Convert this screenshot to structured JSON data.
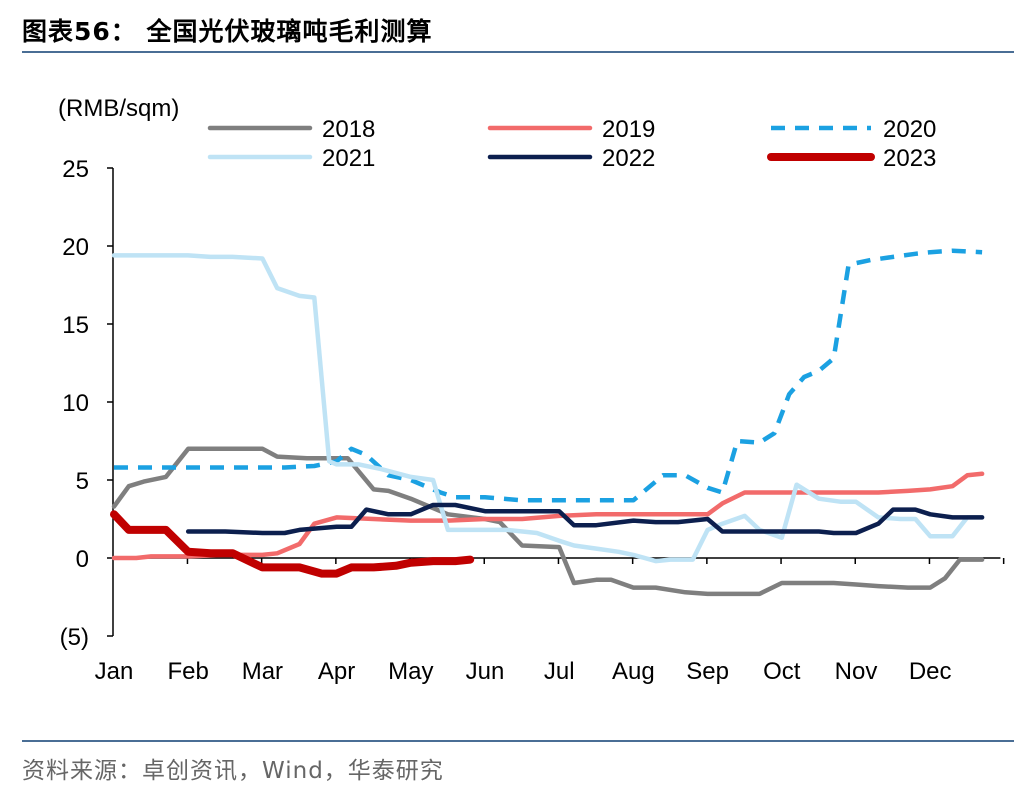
{
  "title": "图表56：  全国光伏玻璃吨毛利测算",
  "source": "资料来源：卓创资讯，Wind，华泰研究",
  "chart_data": {
    "type": "line",
    "unit_label": "(RMB/sqm)",
    "categories": [
      "Jan",
      "Feb",
      "Mar",
      "Apr",
      "May",
      "Jun",
      "Jul",
      "Aug",
      "Sep",
      "Oct",
      "Nov",
      "Dec"
    ],
    "ylim": [
      -5,
      25
    ],
    "yticks": [
      25,
      20,
      15,
      10,
      5,
      0,
      -5
    ],
    "ytick_labels": [
      "25",
      "20",
      "15",
      "10",
      "5",
      "0",
      "(5)"
    ],
    "grid": false,
    "legend_position": "top",
    "series": [
      {
        "name": "2018",
        "color": "#7f7f7f",
        "dash": "solid",
        "width": 4.5,
        "points": [
          [
            0,
            3.3
          ],
          [
            0.2,
            4.6
          ],
          [
            0.4,
            4.9
          ],
          [
            0.7,
            5.2
          ],
          [
            1.0,
            7.0
          ],
          [
            1.5,
            7.0
          ],
          [
            2.0,
            7.0
          ],
          [
            2.2,
            6.5
          ],
          [
            2.6,
            6.4
          ],
          [
            3.0,
            6.4
          ],
          [
            3.15,
            6.4
          ],
          [
            3.5,
            4.4
          ],
          [
            3.7,
            4.3
          ],
          [
            4.0,
            3.8
          ],
          [
            4.5,
            2.8
          ],
          [
            5.0,
            2.5
          ],
          [
            5.2,
            2.3
          ],
          [
            5.5,
            0.8
          ],
          [
            6.0,
            0.7
          ],
          [
            6.2,
            -1.6
          ],
          [
            6.5,
            -1.4
          ],
          [
            6.7,
            -1.4
          ],
          [
            7.0,
            -1.9
          ],
          [
            7.3,
            -1.9
          ],
          [
            7.7,
            -2.2
          ],
          [
            8.0,
            -2.3
          ],
          [
            8.5,
            -2.3
          ],
          [
            8.7,
            -2.3
          ],
          [
            9.0,
            -1.6
          ],
          [
            9.5,
            -1.6
          ],
          [
            9.7,
            -1.6
          ],
          [
            10.0,
            -1.7
          ],
          [
            10.3,
            -1.8
          ],
          [
            10.7,
            -1.9
          ],
          [
            11.0,
            -1.9
          ],
          [
            11.2,
            -1.3
          ],
          [
            11.4,
            -0.1
          ],
          [
            11.7,
            -0.1
          ]
        ]
      },
      {
        "name": "2019",
        "color": "#f26b6b",
        "dash": "solid",
        "width": 4.5,
        "points": [
          [
            0,
            0.0
          ],
          [
            0.3,
            0.0
          ],
          [
            0.5,
            0.1
          ],
          [
            1.0,
            0.1
          ],
          [
            1.5,
            0.2
          ],
          [
            2.0,
            0.2
          ],
          [
            2.2,
            0.3
          ],
          [
            2.5,
            0.9
          ],
          [
            2.7,
            2.2
          ],
          [
            3.0,
            2.6
          ],
          [
            3.5,
            2.5
          ],
          [
            4.0,
            2.4
          ],
          [
            4.5,
            2.4
          ],
          [
            5.0,
            2.5
          ],
          [
            5.5,
            2.5
          ],
          [
            6.0,
            2.7
          ],
          [
            6.5,
            2.8
          ],
          [
            7.0,
            2.8
          ],
          [
            7.5,
            2.8
          ],
          [
            8.0,
            2.8
          ],
          [
            8.2,
            3.5
          ],
          [
            8.5,
            4.2
          ],
          [
            9.0,
            4.2
          ],
          [
            9.5,
            4.2
          ],
          [
            10.0,
            4.2
          ],
          [
            10.3,
            4.2
          ],
          [
            10.7,
            4.3
          ],
          [
            11.0,
            4.4
          ],
          [
            11.3,
            4.6
          ],
          [
            11.5,
            5.3
          ],
          [
            11.7,
            5.4
          ]
        ]
      },
      {
        "name": "2020",
        "color": "#1ba1e2",
        "dash": "dashed",
        "width": 4.5,
        "points": [
          [
            0,
            5.8
          ],
          [
            0.5,
            5.8
          ],
          [
            1.0,
            5.8
          ],
          [
            2.0,
            5.8
          ],
          [
            2.3,
            5.8
          ],
          [
            2.7,
            5.9
          ],
          [
            3.0,
            6.2
          ],
          [
            3.2,
            7.0
          ],
          [
            3.4,
            6.6
          ],
          [
            3.7,
            5.3
          ],
          [
            4.0,
            5.0
          ],
          [
            4.4,
            4.2
          ],
          [
            4.6,
            3.9
          ],
          [
            5.0,
            3.9
          ],
          [
            5.5,
            3.7
          ],
          [
            6.0,
            3.7
          ],
          [
            6.5,
            3.7
          ],
          [
            7.0,
            3.7
          ],
          [
            7.2,
            4.5
          ],
          [
            7.4,
            5.3
          ],
          [
            7.7,
            5.3
          ],
          [
            8.0,
            4.5
          ],
          [
            8.2,
            4.2
          ],
          [
            8.4,
            7.5
          ],
          [
            8.7,
            7.4
          ],
          [
            8.9,
            8.0
          ],
          [
            9.1,
            10.5
          ],
          [
            9.3,
            11.6
          ],
          [
            9.5,
            12.0
          ],
          [
            9.7,
            12.8
          ],
          [
            9.9,
            18.8
          ],
          [
            10.2,
            19.1
          ],
          [
            10.5,
            19.3
          ],
          [
            10.8,
            19.5
          ],
          [
            11.0,
            19.6
          ],
          [
            11.3,
            19.7
          ],
          [
            11.7,
            19.6
          ]
        ]
      },
      {
        "name": "2021",
        "color": "#bfe3f5",
        "dash": "solid",
        "width": 4.5,
        "points": [
          [
            0,
            19.4
          ],
          [
            0.5,
            19.4
          ],
          [
            1.0,
            19.4
          ],
          [
            1.3,
            19.3
          ],
          [
            1.6,
            19.3
          ],
          [
            2.0,
            19.2
          ],
          [
            2.2,
            17.3
          ],
          [
            2.5,
            16.8
          ],
          [
            2.7,
            16.7
          ],
          [
            2.9,
            6.2
          ],
          [
            3.0,
            6.0
          ],
          [
            3.3,
            6.0
          ],
          [
            3.6,
            5.7
          ],
          [
            4.0,
            5.2
          ],
          [
            4.3,
            5.0
          ],
          [
            4.5,
            1.8
          ],
          [
            5.0,
            1.8
          ],
          [
            5.3,
            1.8
          ],
          [
            5.7,
            1.6
          ],
          [
            6.0,
            1.1
          ],
          [
            6.2,
            0.8
          ],
          [
            6.5,
            0.6
          ],
          [
            6.8,
            0.4
          ],
          [
            7.0,
            0.2
          ],
          [
            7.3,
            -0.2
          ],
          [
            7.5,
            -0.1
          ],
          [
            7.8,
            -0.1
          ],
          [
            8.0,
            1.8
          ],
          [
            8.2,
            2.2
          ],
          [
            8.5,
            2.7
          ],
          [
            8.7,
            1.8
          ],
          [
            9.0,
            1.3
          ],
          [
            9.2,
            4.7
          ],
          [
            9.5,
            3.8
          ],
          [
            9.8,
            3.6
          ],
          [
            10.0,
            3.6
          ],
          [
            10.3,
            2.6
          ],
          [
            10.6,
            2.5
          ],
          [
            10.8,
            2.5
          ],
          [
            11.0,
            1.4
          ],
          [
            11.3,
            1.4
          ],
          [
            11.5,
            2.6
          ],
          [
            11.7,
            2.6
          ]
        ]
      },
      {
        "name": "2022",
        "color": "#0c1f4e",
        "dash": "solid",
        "width": 4.5,
        "points": [
          [
            1.0,
            1.7
          ],
          [
            1.5,
            1.7
          ],
          [
            2.0,
            1.6
          ],
          [
            2.3,
            1.6
          ],
          [
            2.5,
            1.8
          ],
          [
            3.0,
            2.0
          ],
          [
            3.2,
            2.0
          ],
          [
            3.4,
            3.1
          ],
          [
            3.7,
            2.8
          ],
          [
            4.0,
            2.8
          ],
          [
            4.3,
            3.4
          ],
          [
            4.6,
            3.4
          ],
          [
            5.0,
            3.0
          ],
          [
            5.5,
            3.0
          ],
          [
            6.0,
            3.0
          ],
          [
            6.2,
            2.1
          ],
          [
            6.5,
            2.1
          ],
          [
            7.0,
            2.4
          ],
          [
            7.3,
            2.3
          ],
          [
            7.6,
            2.3
          ],
          [
            8.0,
            2.5
          ],
          [
            8.2,
            1.7
          ],
          [
            8.5,
            1.7
          ],
          [
            9.0,
            1.7
          ],
          [
            9.5,
            1.7
          ],
          [
            9.7,
            1.6
          ],
          [
            10.0,
            1.6
          ],
          [
            10.3,
            2.2
          ],
          [
            10.5,
            3.1
          ],
          [
            10.8,
            3.1
          ],
          [
            11.0,
            2.8
          ],
          [
            11.3,
            2.6
          ],
          [
            11.7,
            2.6
          ]
        ]
      },
      {
        "name": "2023",
        "color": "#c00000",
        "dash": "solid",
        "width": 8,
        "points": [
          [
            0,
            2.8
          ],
          [
            0.2,
            1.8
          ],
          [
            0.5,
            1.8
          ],
          [
            0.7,
            1.8
          ],
          [
            1.0,
            0.4
          ],
          [
            1.3,
            0.3
          ],
          [
            1.6,
            0.3
          ],
          [
            2.0,
            -0.6
          ],
          [
            2.3,
            -0.6
          ],
          [
            2.5,
            -0.6
          ],
          [
            2.8,
            -1.0
          ],
          [
            3.0,
            -1.0
          ],
          [
            3.2,
            -0.6
          ],
          [
            3.5,
            -0.6
          ],
          [
            3.8,
            -0.5
          ],
          [
            4.0,
            -0.3
          ],
          [
            4.3,
            -0.2
          ],
          [
            4.6,
            -0.2
          ],
          [
            4.8,
            -0.1
          ]
        ]
      }
    ]
  }
}
